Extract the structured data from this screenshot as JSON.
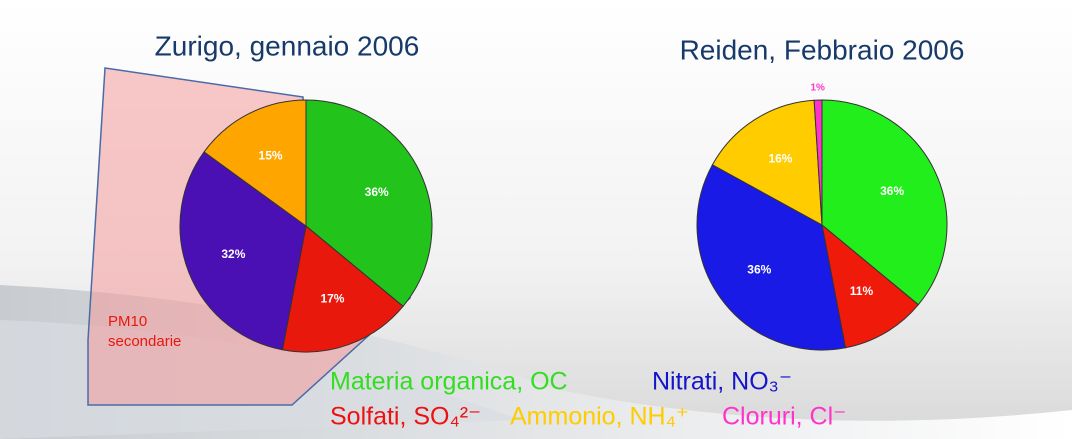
{
  "chart_data": [
    {
      "type": "pie",
      "title": "Zurigo, gennaio 2006",
      "values": [
        36,
        17,
        32,
        15
      ],
      "value_labels": [
        "36%",
        "17%",
        "32%",
        "15%"
      ],
      "colors": [
        "#22c41c",
        "#e8180c",
        "#4a10b4",
        "#ffa500"
      ],
      "annotation": [
        "PM10",
        "secondarie"
      ]
    },
    {
      "type": "pie",
      "title": "Reiden, Febbraio 2006",
      "values": [
        36,
        11,
        36,
        16,
        1
      ],
      "value_labels": [
        "36%",
        "11%",
        "36%",
        "16%",
        "1%"
      ],
      "colors": [
        "#22ee1c",
        "#f01a0a",
        "#1a1ae6",
        "#ffcc00",
        "#ff33cc"
      ]
    }
  ],
  "legend": {
    "items": [
      {
        "label": "Materia organica, OC",
        "color": "#33dd22"
      },
      {
        "label": "Nitrati, NO₃⁻",
        "color": "#1414cc"
      },
      {
        "label": "Solfati, SO₄²⁻",
        "color": "#ee1111"
      },
      {
        "label": "Ammonio, NH₄⁺",
        "color": "#ffcc00"
      },
      {
        "label": "Cloruri, Cl⁻",
        "color": "#ff33cc"
      }
    ]
  }
}
